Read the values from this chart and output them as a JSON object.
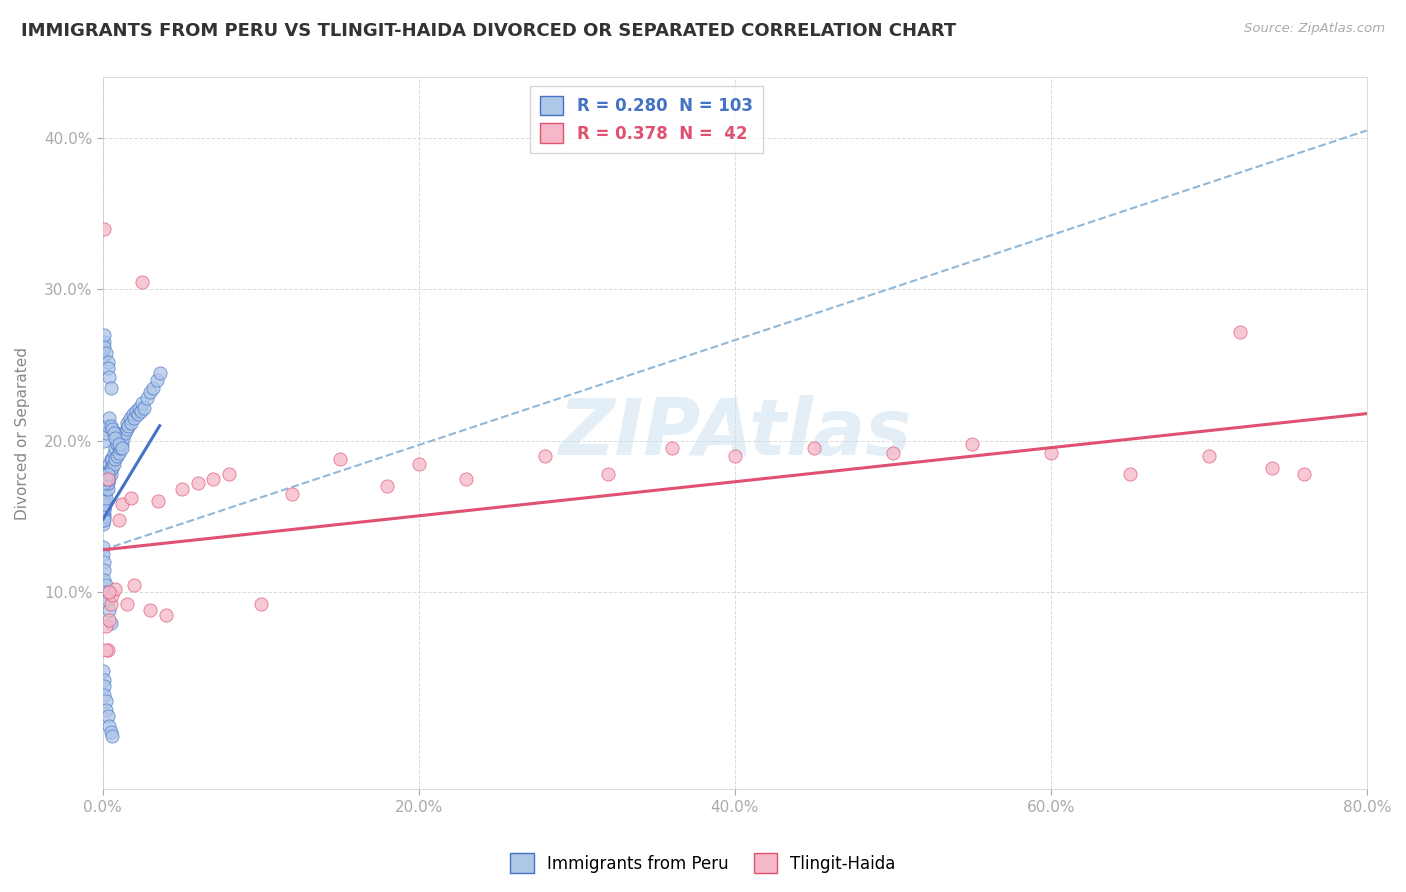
{
  "title": "IMMIGRANTS FROM PERU VS TLINGIT-HAIDA DIVORCED OR SEPARATED CORRELATION CHART",
  "source_text": "Source: ZipAtlas.com",
  "ylabel": "Divorced or Separated",
  "legend_labels": [
    "Immigrants from Peru",
    "Tlingit-Haida"
  ],
  "r_values": [
    0.28,
    0.378
  ],
  "n_values": [
    103,
    42
  ],
  "scatter_color_blue": "#aec6e8",
  "scatter_color_pink": "#f4b8c8",
  "line_color_blue": "#4472c4",
  "line_color_pink": "#e05070",
  "dashed_line_color": "#90b8d8",
  "xlim": [
    0.0,
    0.8
  ],
  "ylim": [
    -0.03,
    0.44
  ],
  "yticks": [
    0.1,
    0.2,
    0.3,
    0.4
  ],
  "xticks": [
    0.0,
    0.2,
    0.4,
    0.6,
    0.8
  ],
  "watermark": "ZIPAtlas",
  "background_color": "#ffffff",
  "grid_color": "#cccccc",
  "title_color": "#333333",
  "axis_label_color": "#4472c4",
  "blue_scatter_x": [
    0.0002,
    0.0003,
    0.0004,
    0.0005,
    0.0006,
    0.0007,
    0.0008,
    0.001,
    0.001,
    0.001,
    0.0012,
    0.0015,
    0.0015,
    0.002,
    0.002,
    0.002,
    0.002,
    0.003,
    0.003,
    0.003,
    0.003,
    0.004,
    0.004,
    0.004,
    0.005,
    0.005,
    0.005,
    0.006,
    0.006,
    0.007,
    0.007,
    0.008,
    0.008,
    0.009,
    0.009,
    0.01,
    0.01,
    0.011,
    0.012,
    0.012,
    0.013,
    0.014,
    0.015,
    0.015,
    0.016,
    0.017,
    0.018,
    0.019,
    0.02,
    0.021,
    0.022,
    0.023,
    0.024,
    0.025,
    0.026,
    0.028,
    0.03,
    0.032,
    0.034,
    0.036,
    0.0002,
    0.0003,
    0.0005,
    0.001,
    0.001,
    0.002,
    0.002,
    0.003,
    0.004,
    0.005,
    0.0002,
    0.0004,
    0.0006,
    0.001,
    0.001,
    0.002,
    0.003,
    0.003,
    0.004,
    0.005,
    0.0003,
    0.0005,
    0.001,
    0.001,
    0.002,
    0.002,
    0.003,
    0.004,
    0.005,
    0.006,
    0.001,
    0.002,
    0.003,
    0.004,
    0.005,
    0.006,
    0.007,
    0.008,
    0.01,
    0.012,
    0.001,
    0.002,
    0.003
  ],
  "blue_scatter_y": [
    0.145,
    0.148,
    0.15,
    0.152,
    0.155,
    0.15,
    0.148,
    0.16,
    0.155,
    0.162,
    0.165,
    0.158,
    0.17,
    0.162,
    0.168,
    0.172,
    0.175,
    0.168,
    0.175,
    0.18,
    0.172,
    0.175,
    0.18,
    0.185,
    0.178,
    0.182,
    0.188,
    0.182,
    0.188,
    0.185,
    0.192,
    0.188,
    0.195,
    0.19,
    0.198,
    0.192,
    0.2,
    0.195,
    0.198,
    0.205,
    0.202,
    0.205,
    0.208,
    0.212,
    0.21,
    0.215,
    0.212,
    0.218,
    0.215,
    0.22,
    0.218,
    0.222,
    0.22,
    0.225,
    0.222,
    0.228,
    0.232,
    0.235,
    0.24,
    0.245,
    0.13,
    0.125,
    0.12,
    0.115,
    0.108,
    0.105,
    0.1,
    0.095,
    0.088,
    0.08,
    0.255,
    0.26,
    0.265,
    0.27,
    0.262,
    0.258,
    0.252,
    0.248,
    0.242,
    0.235,
    0.048,
    0.042,
    0.038,
    0.032,
    0.028,
    0.022,
    0.018,
    0.012,
    0.008,
    0.005,
    0.2,
    0.205,
    0.21,
    0.215,
    0.21,
    0.208,
    0.205,
    0.202,
    0.198,
    0.195,
    0.172,
    0.175,
    0.178
  ],
  "pink_scatter_x": [
    0.001,
    0.002,
    0.003,
    0.003,
    0.004,
    0.005,
    0.006,
    0.008,
    0.01,
    0.012,
    0.015,
    0.018,
    0.02,
    0.025,
    0.03,
    0.035,
    0.04,
    0.05,
    0.06,
    0.07,
    0.08,
    0.1,
    0.12,
    0.15,
    0.18,
    0.2,
    0.23,
    0.28,
    0.32,
    0.36,
    0.4,
    0.45,
    0.5,
    0.55,
    0.6,
    0.65,
    0.7,
    0.72,
    0.74,
    0.76,
    0.002,
    0.004
  ],
  "pink_scatter_y": [
    0.34,
    0.078,
    0.062,
    0.175,
    0.082,
    0.092,
    0.098,
    0.102,
    0.148,
    0.158,
    0.092,
    0.162,
    0.105,
    0.305,
    0.088,
    0.16,
    0.085,
    0.168,
    0.172,
    0.175,
    0.178,
    0.092,
    0.165,
    0.188,
    0.17,
    0.185,
    0.175,
    0.19,
    0.178,
    0.195,
    0.19,
    0.195,
    0.192,
    0.198,
    0.192,
    0.178,
    0.19,
    0.272,
    0.182,
    0.178,
    0.062,
    0.1
  ],
  "blue_line_x0": 0.0,
  "blue_line_y0": 0.148,
  "blue_line_x1": 0.036,
  "blue_line_y1": 0.21,
  "pink_line_x0": 0.0,
  "pink_line_y0": 0.128,
  "pink_line_x1": 0.8,
  "pink_line_y1": 0.218,
  "dash_line_x0": 0.0,
  "dash_line_y0": 0.128,
  "dash_line_x1": 0.8,
  "dash_line_y1": 0.405
}
